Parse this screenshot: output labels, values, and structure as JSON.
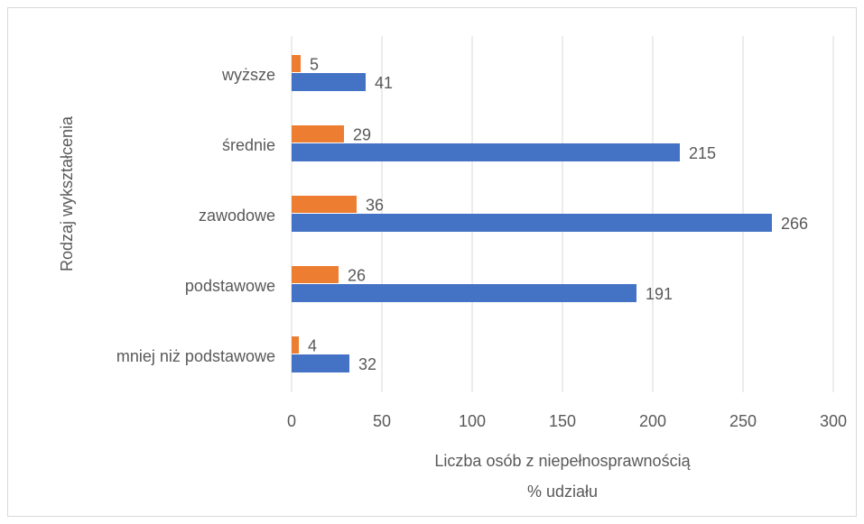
{
  "chart_data": {
    "type": "bar",
    "orientation": "horizontal",
    "ylabel": "Rodzaj wykształcenia",
    "xlabel": [
      "Liczba osób z niepełnosprawnością",
      "% udziału"
    ],
    "categories": [
      "wyższe",
      "średnie",
      "zawodowe",
      "podstawowe",
      "mniej niż podstawowe"
    ],
    "series": [
      {
        "color": "#ed7d31",
        "values": [
          5,
          29,
          36,
          26,
          4
        ]
      },
      {
        "color": "#4472c4",
        "values": [
          41,
          215,
          266,
          191,
          32
        ]
      }
    ],
    "xlim": [
      0,
      300
    ],
    "xticks": [
      0,
      50,
      100,
      150,
      200,
      250,
      300
    ],
    "grid": true
  }
}
